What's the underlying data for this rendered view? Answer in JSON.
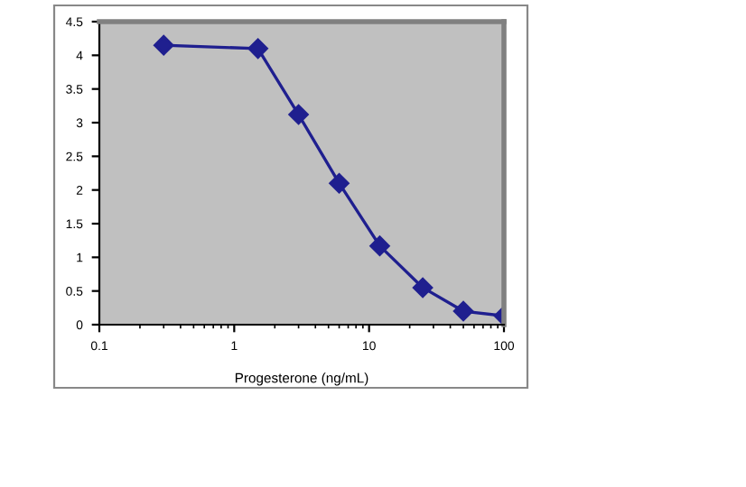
{
  "chart_data": {
    "type": "line",
    "xlabel": "Progesterone (ng/mL)",
    "log": "x",
    "x": [
      0.3,
      1.5,
      3,
      6,
      12,
      25,
      50,
      100
    ],
    "series": [
      {
        "color": "#1f1f8f",
        "values": [
          4.15,
          4.1,
          3.12,
          2.1,
          1.17,
          0.55,
          0.2,
          0.13
        ]
      }
    ],
    "xlim": [
      0.1,
      100
    ],
    "xticks": [
      0.1,
      1,
      10,
      100
    ],
    "ylim": [
      0,
      4.5
    ],
    "yticks": [
      0,
      0.5,
      1,
      1.5,
      2,
      2.5,
      3,
      3.5,
      4,
      4.5
    ],
    "marker": "diamond",
    "line_style": "solid",
    "grid": false,
    "legend": false
  }
}
